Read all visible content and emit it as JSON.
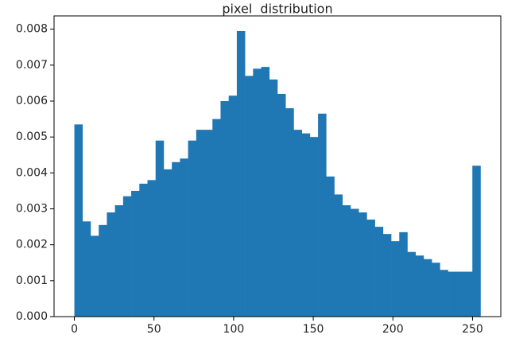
{
  "chart_data": {
    "type": "histogram",
    "title": "pixel  distribution",
    "color": "#1f77b4",
    "bins": [
      0,
      5.1,
      10.2,
      15.3,
      20.4,
      25.5,
      30.6,
      35.7,
      40.8,
      45.9,
      51,
      56.1,
      61.2,
      66.3,
      71.4,
      76.5,
      81.6,
      86.7,
      91.8,
      96.9,
      102,
      107.1,
      112.2,
      117.3,
      122.4,
      127.5,
      132.6,
      137.7,
      142.8,
      147.9,
      153,
      158.1,
      163.2,
      168.3,
      173.4,
      178.5,
      183.6,
      188.7,
      193.8,
      198.9,
      204,
      209.1,
      214.2,
      219.3,
      224.4,
      229.5,
      234.6,
      239.7,
      244.8,
      249.9,
      255
    ],
    "values": [
      0.00535,
      0.00265,
      0.00225,
      0.00255,
      0.0029,
      0.0031,
      0.00335,
      0.0035,
      0.0037,
      0.0038,
      0.0049,
      0.0041,
      0.0043,
      0.0044,
      0.0049,
      0.0052,
      0.0052,
      0.0055,
      0.006,
      0.00615,
      0.00795,
      0.0067,
      0.0069,
      0.00695,
      0.0066,
      0.0062,
      0.0058,
      0.0052,
      0.0051,
      0.005,
      0.00565,
      0.0039,
      0.0034,
      0.0031,
      0.003,
      0.0029,
      0.0027,
      0.0025,
      0.0023,
      0.0021,
      0.00235,
      0.0018,
      0.0017,
      0.0016,
      0.0015,
      0.0013,
      0.00125,
      0.00125,
      0.00125,
      0.0042
    ],
    "xlim": [
      -12.75,
      267.75
    ],
    "ylim": [
      0,
      0.00837
    ],
    "xticks": [
      0,
      50,
      100,
      150,
      200,
      250
    ],
    "yticks": [
      {
        "value": 0,
        "label": "0.000"
      },
      {
        "value": 0.001,
        "label": "0.001"
      },
      {
        "value": 0.002,
        "label": "0.002"
      },
      {
        "value": 0.003,
        "label": "0.003"
      },
      {
        "value": 0.004,
        "label": "0.004"
      },
      {
        "value": 0.005,
        "label": "0.005"
      },
      {
        "value": 0.006,
        "label": "0.006"
      },
      {
        "value": 0.007,
        "label": "0.007"
      },
      {
        "value": 0.008,
        "label": "0.008"
      }
    ]
  }
}
